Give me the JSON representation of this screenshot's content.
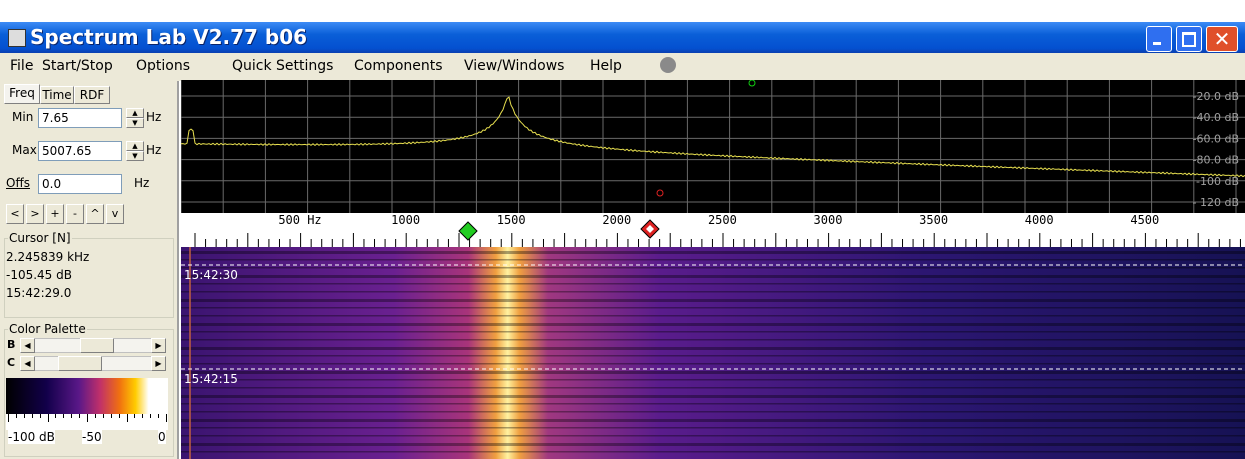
{
  "window": {
    "title": "Spectrum Lab V2.77 b06"
  },
  "menu": [
    "File",
    "Start/Stop",
    "Options",
    "Quick Settings",
    "Components",
    "View/Windows",
    "Help"
  ],
  "tabs": [
    "Freq",
    "Time",
    "RDF"
  ],
  "fields": [
    {
      "label": "Min",
      "value": "7.65",
      "unit": "Hz"
    },
    {
      "label": "Max",
      "value": "5007.65",
      "unit": "Hz"
    },
    {
      "label": "Offs",
      "value": "0.0",
      "unit": "Hz"
    }
  ],
  "buttons": [
    "<",
    ">",
    "+",
    "-",
    "^",
    "v"
  ],
  "cursor": {
    "title": "Cursor [N]",
    "lines": [
      "2.245839 kHz",
      "-105.45 dB",
      "15:42:29.0"
    ]
  },
  "palette": {
    "title": "Color Palette",
    "sliders": [
      "B",
      "C"
    ],
    "labels": [
      "-100 dB",
      "-50",
      "0"
    ]
  },
  "spectrum": {
    "db_labels": [
      "-20.0 dB",
      "-40.0 dB",
      "-60.0 dB",
      "-80.0 dB",
      "-100 dB",
      "- 120 dB"
    ]
  },
  "scale": {
    "labels": [
      "500 Hz",
      "1000",
      "1500",
      "2000",
      "2500",
      "3000",
      "3500",
      "4000",
      "4500"
    ]
  },
  "waterfall": {
    "times": [
      "15:42:30",
      "15:42:15"
    ]
  }
}
